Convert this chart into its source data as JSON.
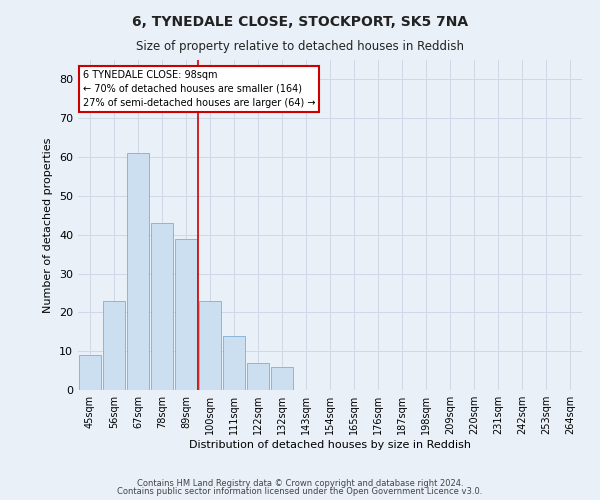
{
  "title1": "6, TYNEDALE CLOSE, STOCKPORT, SK5 7NA",
  "title2": "Size of property relative to detached houses in Reddish",
  "xlabel": "Distribution of detached houses by size in Reddish",
  "ylabel": "Number of detached properties",
  "bar_values": [
    9,
    23,
    61,
    43,
    39,
    23,
    14,
    7,
    6,
    0,
    0,
    0,
    0,
    0,
    0,
    0,
    0,
    0,
    0,
    0,
    0
  ],
  "bar_labels": [
    "45sqm",
    "56sqm",
    "67sqm",
    "78sqm",
    "89sqm",
    "100sqm",
    "111sqm",
    "122sqm",
    "132sqm",
    "143sqm",
    "154sqm",
    "165sqm",
    "176sqm",
    "187sqm",
    "198sqm",
    "209sqm",
    "220sqm",
    "231sqm",
    "242sqm",
    "253sqm",
    "264sqm"
  ],
  "bar_color": "#ccdff0",
  "bar_edge_color": "#7aafd4",
  "property_line_x": 4.5,
  "annotation_line1": "6 TYNEDALE CLOSE: 98sqm",
  "annotation_line2": "← 70% of detached houses are smaller (164)",
  "annotation_line3": "27% of semi-detached houses are larger (64) →",
  "annotation_box_color": "#ffffff",
  "annotation_box_edge": "#cc0000",
  "line_color": "#cc0000",
  "ylim": [
    0,
    85
  ],
  "yticks": [
    0,
    10,
    20,
    30,
    40,
    50,
    60,
    70,
    80
  ],
  "grid_color": "#d0d8e8",
  "bg_color": "#eaf0f8",
  "footnote1": "Contains HM Land Registry data © Crown copyright and database right 2024.",
  "footnote2": "Contains public sector information licensed under the Open Government Licence v3.0."
}
